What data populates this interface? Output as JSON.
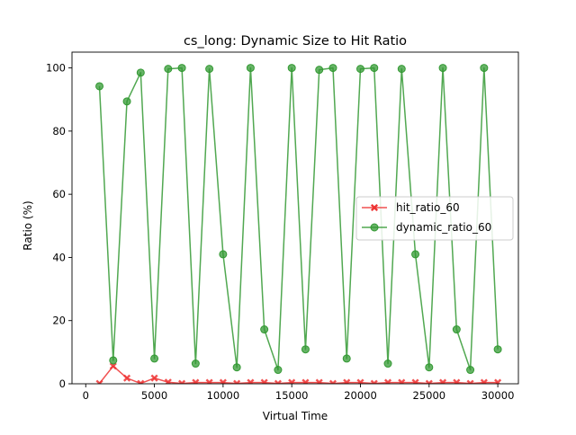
{
  "chart_data": {
    "type": "line",
    "title": "cs_long: Dynamic Size to Hit Ratio",
    "xlabel": "Virtual Time",
    "ylabel": "Ratio (%)",
    "xlim": [
      -1000,
      31500
    ],
    "ylim": [
      0,
      105
    ],
    "xticks": [
      0,
      5000,
      10000,
      15000,
      20000,
      25000,
      30000
    ],
    "xtick_labels": [
      "0",
      "5000",
      "10000",
      "15000",
      "20000",
      "25000",
      "30000"
    ],
    "yticks": [
      0,
      20,
      40,
      60,
      80,
      100
    ],
    "ytick_labels": [
      "0",
      "20",
      "40",
      "60",
      "80",
      "100"
    ],
    "grid": false,
    "legend_position": "center-right",
    "x": [
      1000,
      2000,
      3000,
      4000,
      5000,
      6000,
      7000,
      8000,
      9000,
      10000,
      11000,
      12000,
      13000,
      14000,
      15000,
      16000,
      17000,
      18000,
      19000,
      20000,
      21000,
      22000,
      23000,
      24000,
      25000,
      26000,
      27000,
      28000,
      29000,
      30000
    ],
    "series": [
      {
        "name": "hit_ratio_60",
        "color": "#ee3333",
        "marker": "x",
        "values": [
          0.1,
          5.6,
          1.8,
          0.1,
          1.8,
          0.5,
          0.1,
          0.4,
          0.4,
          0.4,
          0.1,
          0.4,
          0.4,
          0.1,
          0.4,
          0.4,
          0.4,
          0.1,
          0.4,
          0.4,
          0.1,
          0.4,
          0.4,
          0.4,
          0.1,
          0.4,
          0.4,
          0.1,
          0.4,
          0.4
        ]
      },
      {
        "name": "dynamic_ratio_60",
        "color": "#339933",
        "marker": "o",
        "values": [
          94.2,
          7.4,
          89.4,
          98.5,
          8.0,
          99.7,
          100.0,
          6.4,
          99.7,
          41.0,
          5.2,
          100.0,
          17.2,
          4.4,
          100.0,
          10.9,
          99.4,
          100.0,
          8.0,
          99.7,
          100.0,
          6.4,
          99.7,
          41.0,
          5.2,
          100.0,
          17.2,
          4.4,
          100.0,
          10.9
        ]
      }
    ]
  }
}
